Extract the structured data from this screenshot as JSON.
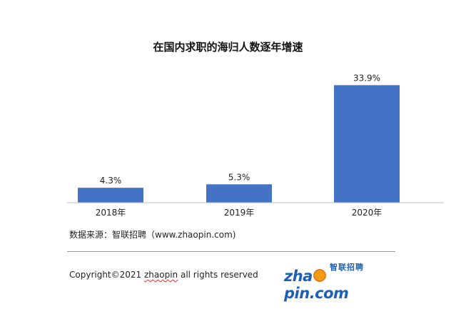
{
  "title": "在国内求职的海归人数逐年增速",
  "chart_data": {
    "type": "bar",
    "categories": [
      "2018年",
      "2019年",
      "2020年"
    ],
    "values": [
      4.3,
      5.3,
      33.9
    ],
    "data_labels": [
      "4.3%",
      "5.3%",
      "33.9%"
    ],
    "ylim": [
      0,
      35
    ],
    "bar_color": "#4472c4",
    "grid": false,
    "legend": "none"
  },
  "source": "数据来源：智联招聘（www.zhaopin.com)",
  "footer": {
    "copyright_prefix": "Copyright©2021 ",
    "copyright_brand": "zhaopin",
    "copyright_suffix": " all rights reserved",
    "logo_cn": "智联招聘",
    "logo_en_prefix": "zha",
    "logo_en_suffix": "pin.com"
  }
}
